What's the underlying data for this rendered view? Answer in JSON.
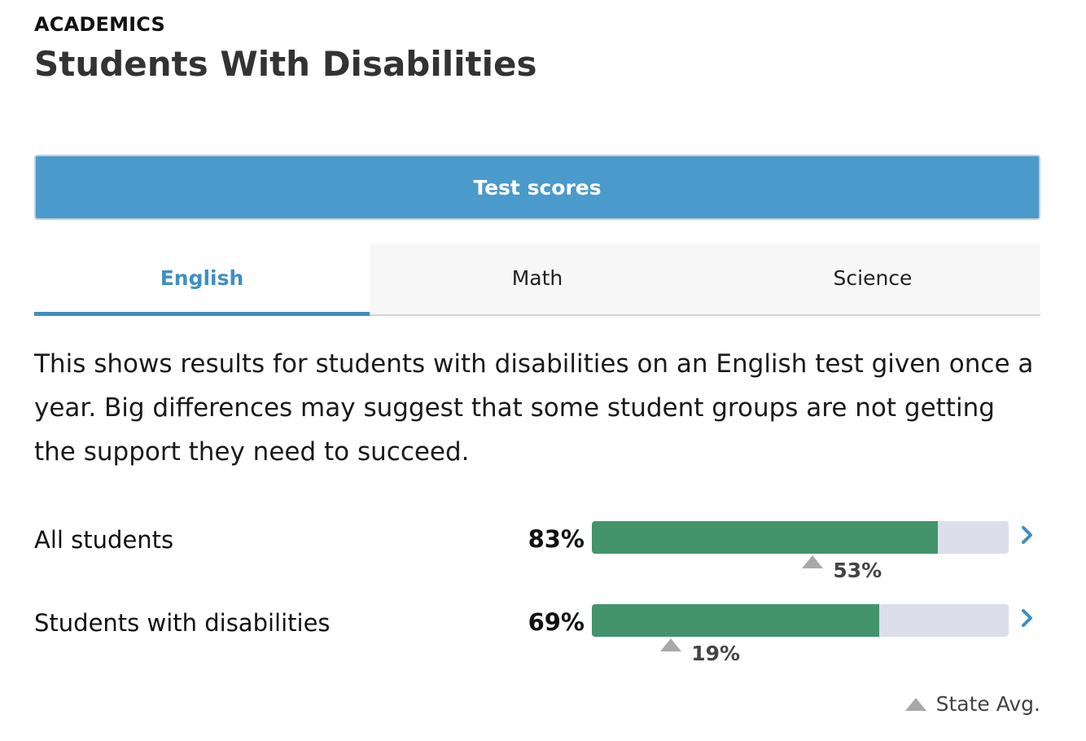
{
  "header": {
    "eyebrow": "ACADEMICS",
    "title": "Students With Disabilities"
  },
  "section_button": {
    "label": "Test scores"
  },
  "tabs": [
    {
      "label": "English",
      "active": true
    },
    {
      "label": "Math",
      "active": false
    },
    {
      "label": "Science",
      "active": false
    }
  ],
  "description": "This shows results for students with disabilities on an English test given once a year. Big differences may suggest that some student groups are not getting the support they need to succeed.",
  "rows": [
    {
      "label": "All students",
      "value_text": "83%",
      "value": 83,
      "state_avg_text": "53%",
      "state_avg": 53
    },
    {
      "label": "Students with disabilities",
      "value_text": "69%",
      "value": 69,
      "state_avg_text": "19%",
      "state_avg": 19
    }
  ],
  "legend": {
    "label": "State Avg."
  },
  "colors": {
    "accent": "#4a9acb",
    "active_tab": "#3f8fc4",
    "bar_fill": "#43946a",
    "bar_track": "#dcdfeb",
    "state_marker": "#a8a8a8"
  },
  "icons": {
    "row_chevron": "chevron-right-icon",
    "state_marker": "triangle-up-icon"
  }
}
